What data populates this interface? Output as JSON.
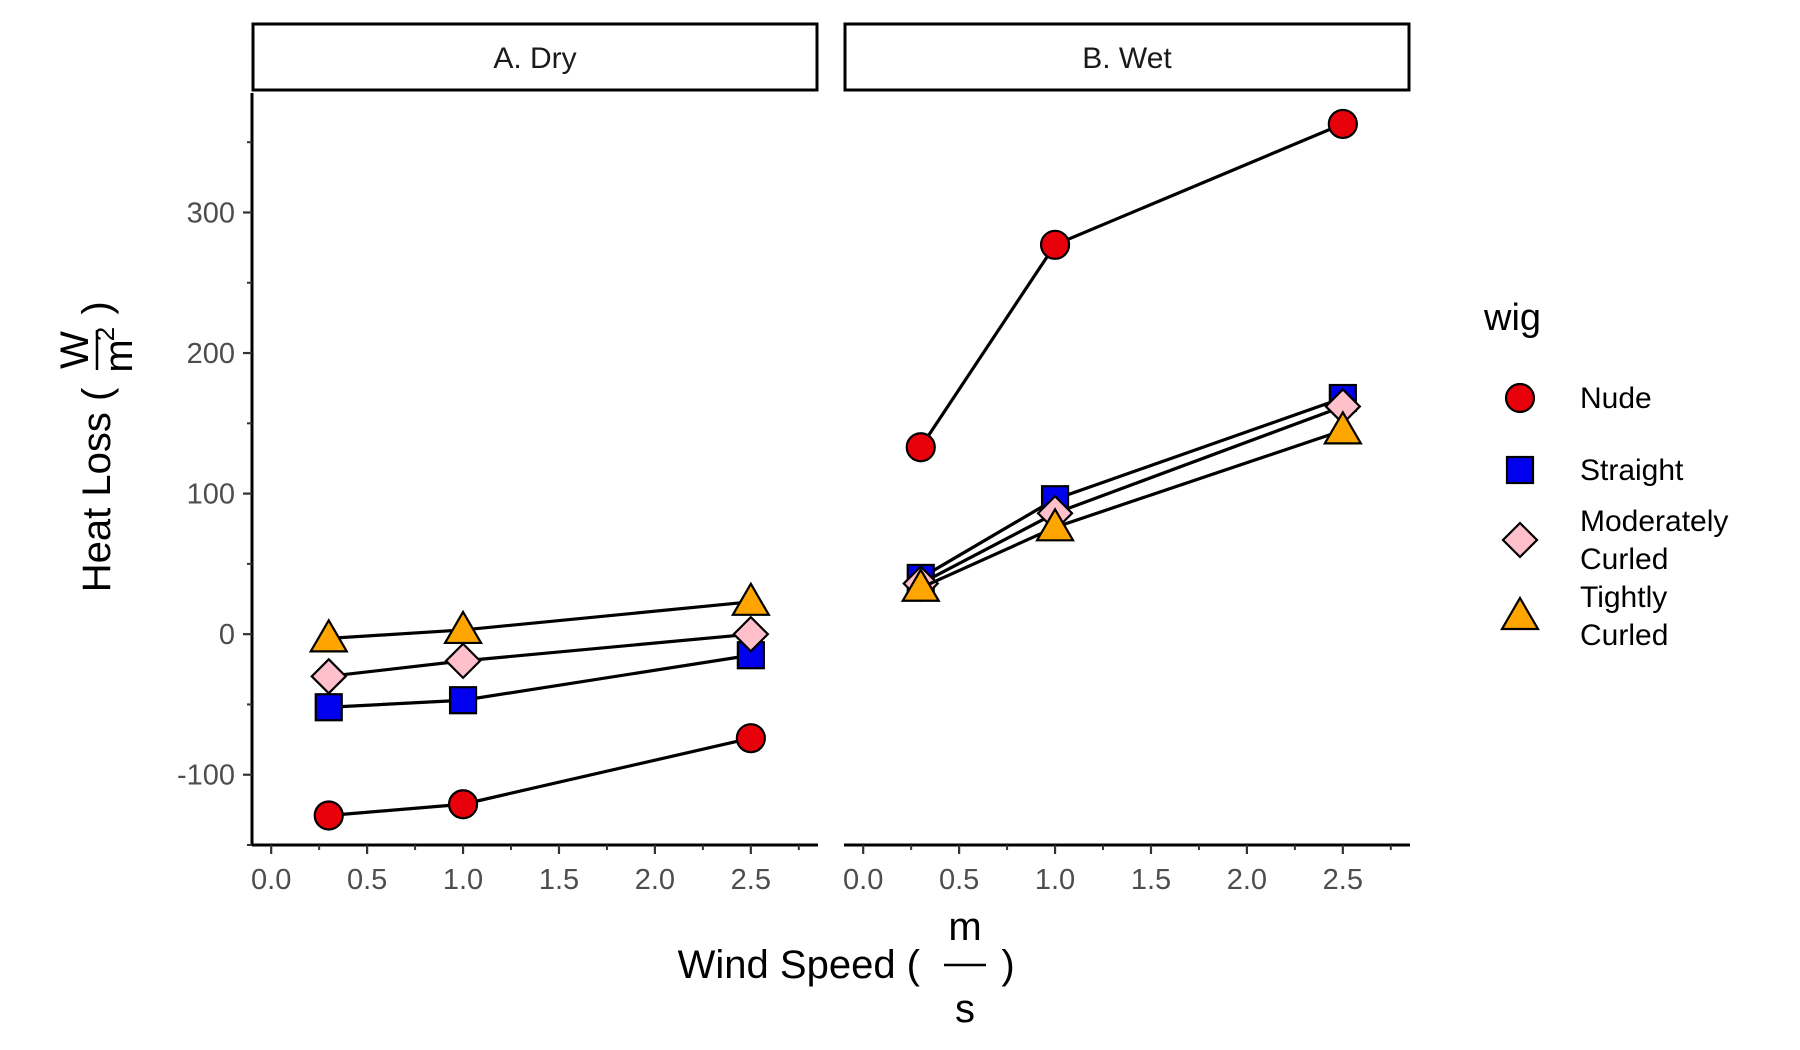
{
  "chart_data": {
    "type": "line",
    "panels": [
      {
        "title": "A. Dry",
        "series": [
          {
            "name": "Nude",
            "x": [
              0.3,
              1.0,
              2.5
            ],
            "y": [
              -129,
              -121,
              -74
            ]
          },
          {
            "name": "Straight",
            "x": [
              0.3,
              1.0,
              2.5
            ],
            "y": [
              -52,
              -47,
              -15
            ]
          },
          {
            "name": "Moderately Curled",
            "x": [
              0.3,
              1.0,
              2.5
            ],
            "y": [
              -30,
              -19,
              0
            ]
          },
          {
            "name": "Tightly Curled",
            "x": [
              0.3,
              1.0,
              2.5
            ],
            "y": [
              -3,
              3,
              23
            ]
          }
        ]
      },
      {
        "title": "B. Wet",
        "series": [
          {
            "name": "Nude",
            "x": [
              0.3,
              1.0,
              2.5
            ],
            "y": [
              133,
              277,
              363
            ]
          },
          {
            "name": "Straight",
            "x": [
              0.3,
              1.0,
              2.5
            ],
            "y": [
              40,
              96,
              168
            ]
          },
          {
            "name": "Moderately Curled",
            "x": [
              0.3,
              1.0,
              2.5
            ],
            "y": [
              36,
              86,
              162
            ]
          },
          {
            "name": "Tightly Curled",
            "x": [
              0.3,
              1.0,
              2.5
            ],
            "y": [
              33,
              76,
              145
            ]
          }
        ]
      }
    ],
    "xlabel": {
      "text": "Wind Speed (",
      "numerator": "m",
      "denominator": "s",
      "close": ")"
    },
    "ylabel": {
      "text": "Heat Loss (",
      "numerator": "W",
      "denominator": "m",
      "superscript": "2",
      "close": ")"
    },
    "xlim": [
      -0.1,
      2.85
    ],
    "ylim": [
      -150,
      385
    ],
    "xticks": [
      0.0,
      0.5,
      1.0,
      1.5,
      2.0,
      2.5
    ],
    "xtick_labels": [
      "0.0",
      "0.5",
      "1.0",
      "1.5",
      "2.0",
      "2.5"
    ],
    "yticks": [
      -100,
      0,
      100,
      200,
      300
    ],
    "ytick_labels": [
      "-100",
      "0",
      "100",
      "200",
      "300"
    ],
    "legend": {
      "title": "wig",
      "placement": "right",
      "entries": [
        {
          "label_lines": [
            "Nude"
          ],
          "shape": "circle",
          "color": "#e8000b"
        },
        {
          "label_lines": [
            "Straight"
          ],
          "shape": "square",
          "color": "#0000ee"
        },
        {
          "label_lines": [
            "Moderately",
            "Curled"
          ],
          "shape": "diamond",
          "color": "#ffc0cb"
        },
        {
          "label_lines": [
            "Tightly",
            "Curled"
          ],
          "shape": "triangle",
          "color": "#ffa500"
        }
      ]
    },
    "grid": false
  }
}
